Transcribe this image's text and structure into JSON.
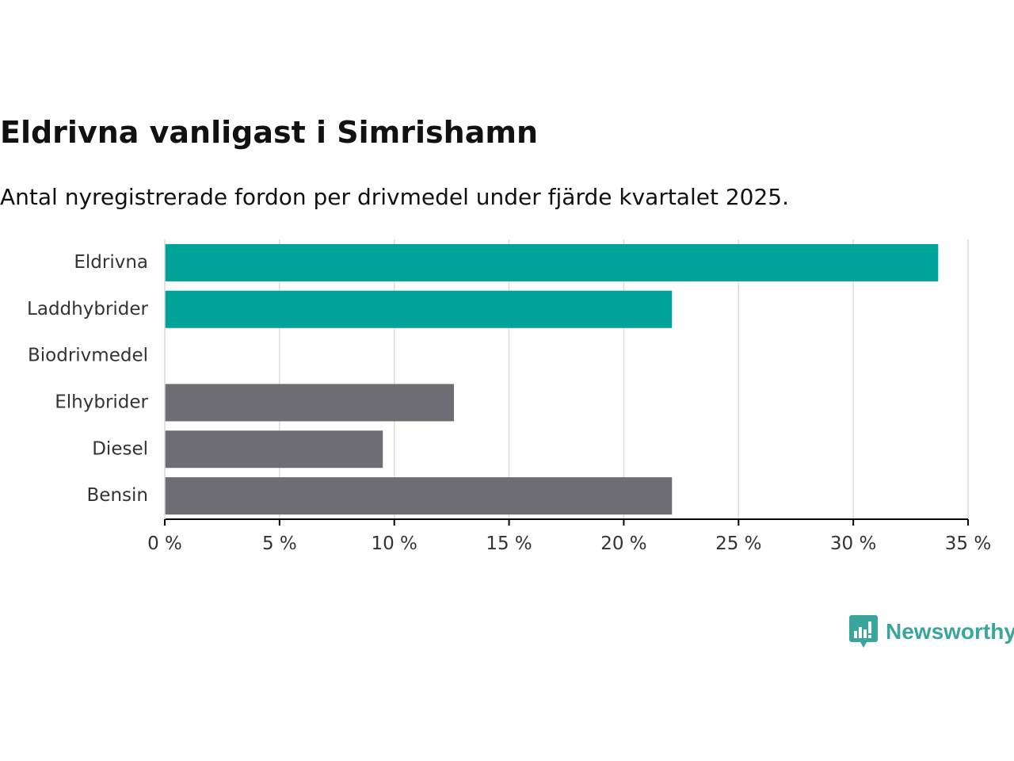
{
  "chart_data": {
    "type": "bar",
    "orientation": "horizontal",
    "title": "Eldrivna vanligast i Simrishamn",
    "subtitle": "Antal nyregistrerade fordon per drivmedel under fjärde kvartalet 2025.",
    "categories": [
      "Eldrivna",
      "Laddhybrider",
      "Biodrivmedel",
      "Elhybrider",
      "Diesel",
      "Bensin"
    ],
    "values": [
      33.7,
      22.1,
      0,
      12.6,
      9.5,
      22.1
    ],
    "colors": [
      "#00a398",
      "#00a398",
      "#00a398",
      "#6e6d74",
      "#6e6d74",
      "#6e6d74"
    ],
    "xlim": [
      0,
      35
    ],
    "xticks": [
      0,
      5,
      10,
      15,
      20,
      25,
      30,
      35
    ],
    "xtick_labels": [
      "0 %",
      "5 %",
      "10 %",
      "15 %",
      "20 %",
      "25 %",
      "30 %",
      "35 %"
    ],
    "xlabel": "",
    "ylabel": "",
    "grid": true
  },
  "branding": {
    "logo_text": "Newsworthy",
    "logo_color": "#3aa59a"
  }
}
